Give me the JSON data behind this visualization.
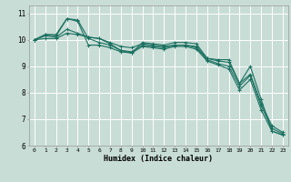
{
  "title": "",
  "xlabel": "Humidex (Indice chaleur)",
  "ylabel": "",
  "bg_color": "#c8ddd6",
  "grid_color": "#ffffff",
  "line_color": "#1a7060",
  "xlim": [
    -0.5,
    23.5
  ],
  "ylim": [
    6,
    11.3
  ],
  "yticks": [
    6,
    7,
    8,
    9,
    10,
    11
  ],
  "xticks": [
    0,
    1,
    2,
    3,
    4,
    5,
    6,
    7,
    8,
    9,
    10,
    11,
    12,
    13,
    14,
    15,
    16,
    17,
    18,
    19,
    20,
    21,
    22,
    23
  ],
  "lines": [
    [
      0,
      1,
      2,
      3,
      4,
      5,
      6,
      7,
      8,
      9,
      10,
      11,
      12,
      13,
      14,
      15,
      16,
      17,
      18,
      19,
      20,
      21,
      22,
      23
    ],
    [
      10.0,
      10.2,
      10.2,
      10.8,
      10.7,
      9.8,
      9.8,
      9.7,
      9.55,
      9.5,
      9.9,
      9.85,
      9.8,
      9.9,
      9.9,
      9.85,
      9.3,
      9.25,
      9.25,
      8.35,
      9.0,
      7.75,
      6.55,
      6.4
    ],
    [
      10.0,
      10.2,
      10.15,
      10.8,
      10.75,
      10.05,
      9.9,
      9.8,
      9.6,
      9.5,
      9.75,
      9.7,
      9.65,
      9.75,
      9.75,
      9.65,
      9.2,
      9.05,
      8.9,
      8.1,
      8.5,
      7.35,
      6.55,
      6.4
    ],
    [
      10.0,
      10.15,
      10.1,
      10.4,
      10.25,
      10.1,
      10.05,
      9.85,
      9.6,
      9.55,
      9.8,
      9.75,
      9.7,
      9.8,
      9.8,
      9.7,
      9.25,
      9.1,
      9.0,
      8.25,
      8.65,
      7.5,
      6.65,
      6.45
    ],
    [
      10.0,
      10.05,
      10.05,
      10.25,
      10.2,
      10.1,
      10.05,
      9.9,
      9.75,
      9.7,
      9.85,
      9.8,
      9.75,
      9.8,
      9.8,
      9.75,
      9.3,
      9.2,
      9.15,
      8.35,
      8.7,
      7.6,
      6.75,
      6.5
    ]
  ],
  "xlabel_fontsize": 6,
  "ytick_fontsize": 5.5,
  "xtick_fontsize": 4.5
}
